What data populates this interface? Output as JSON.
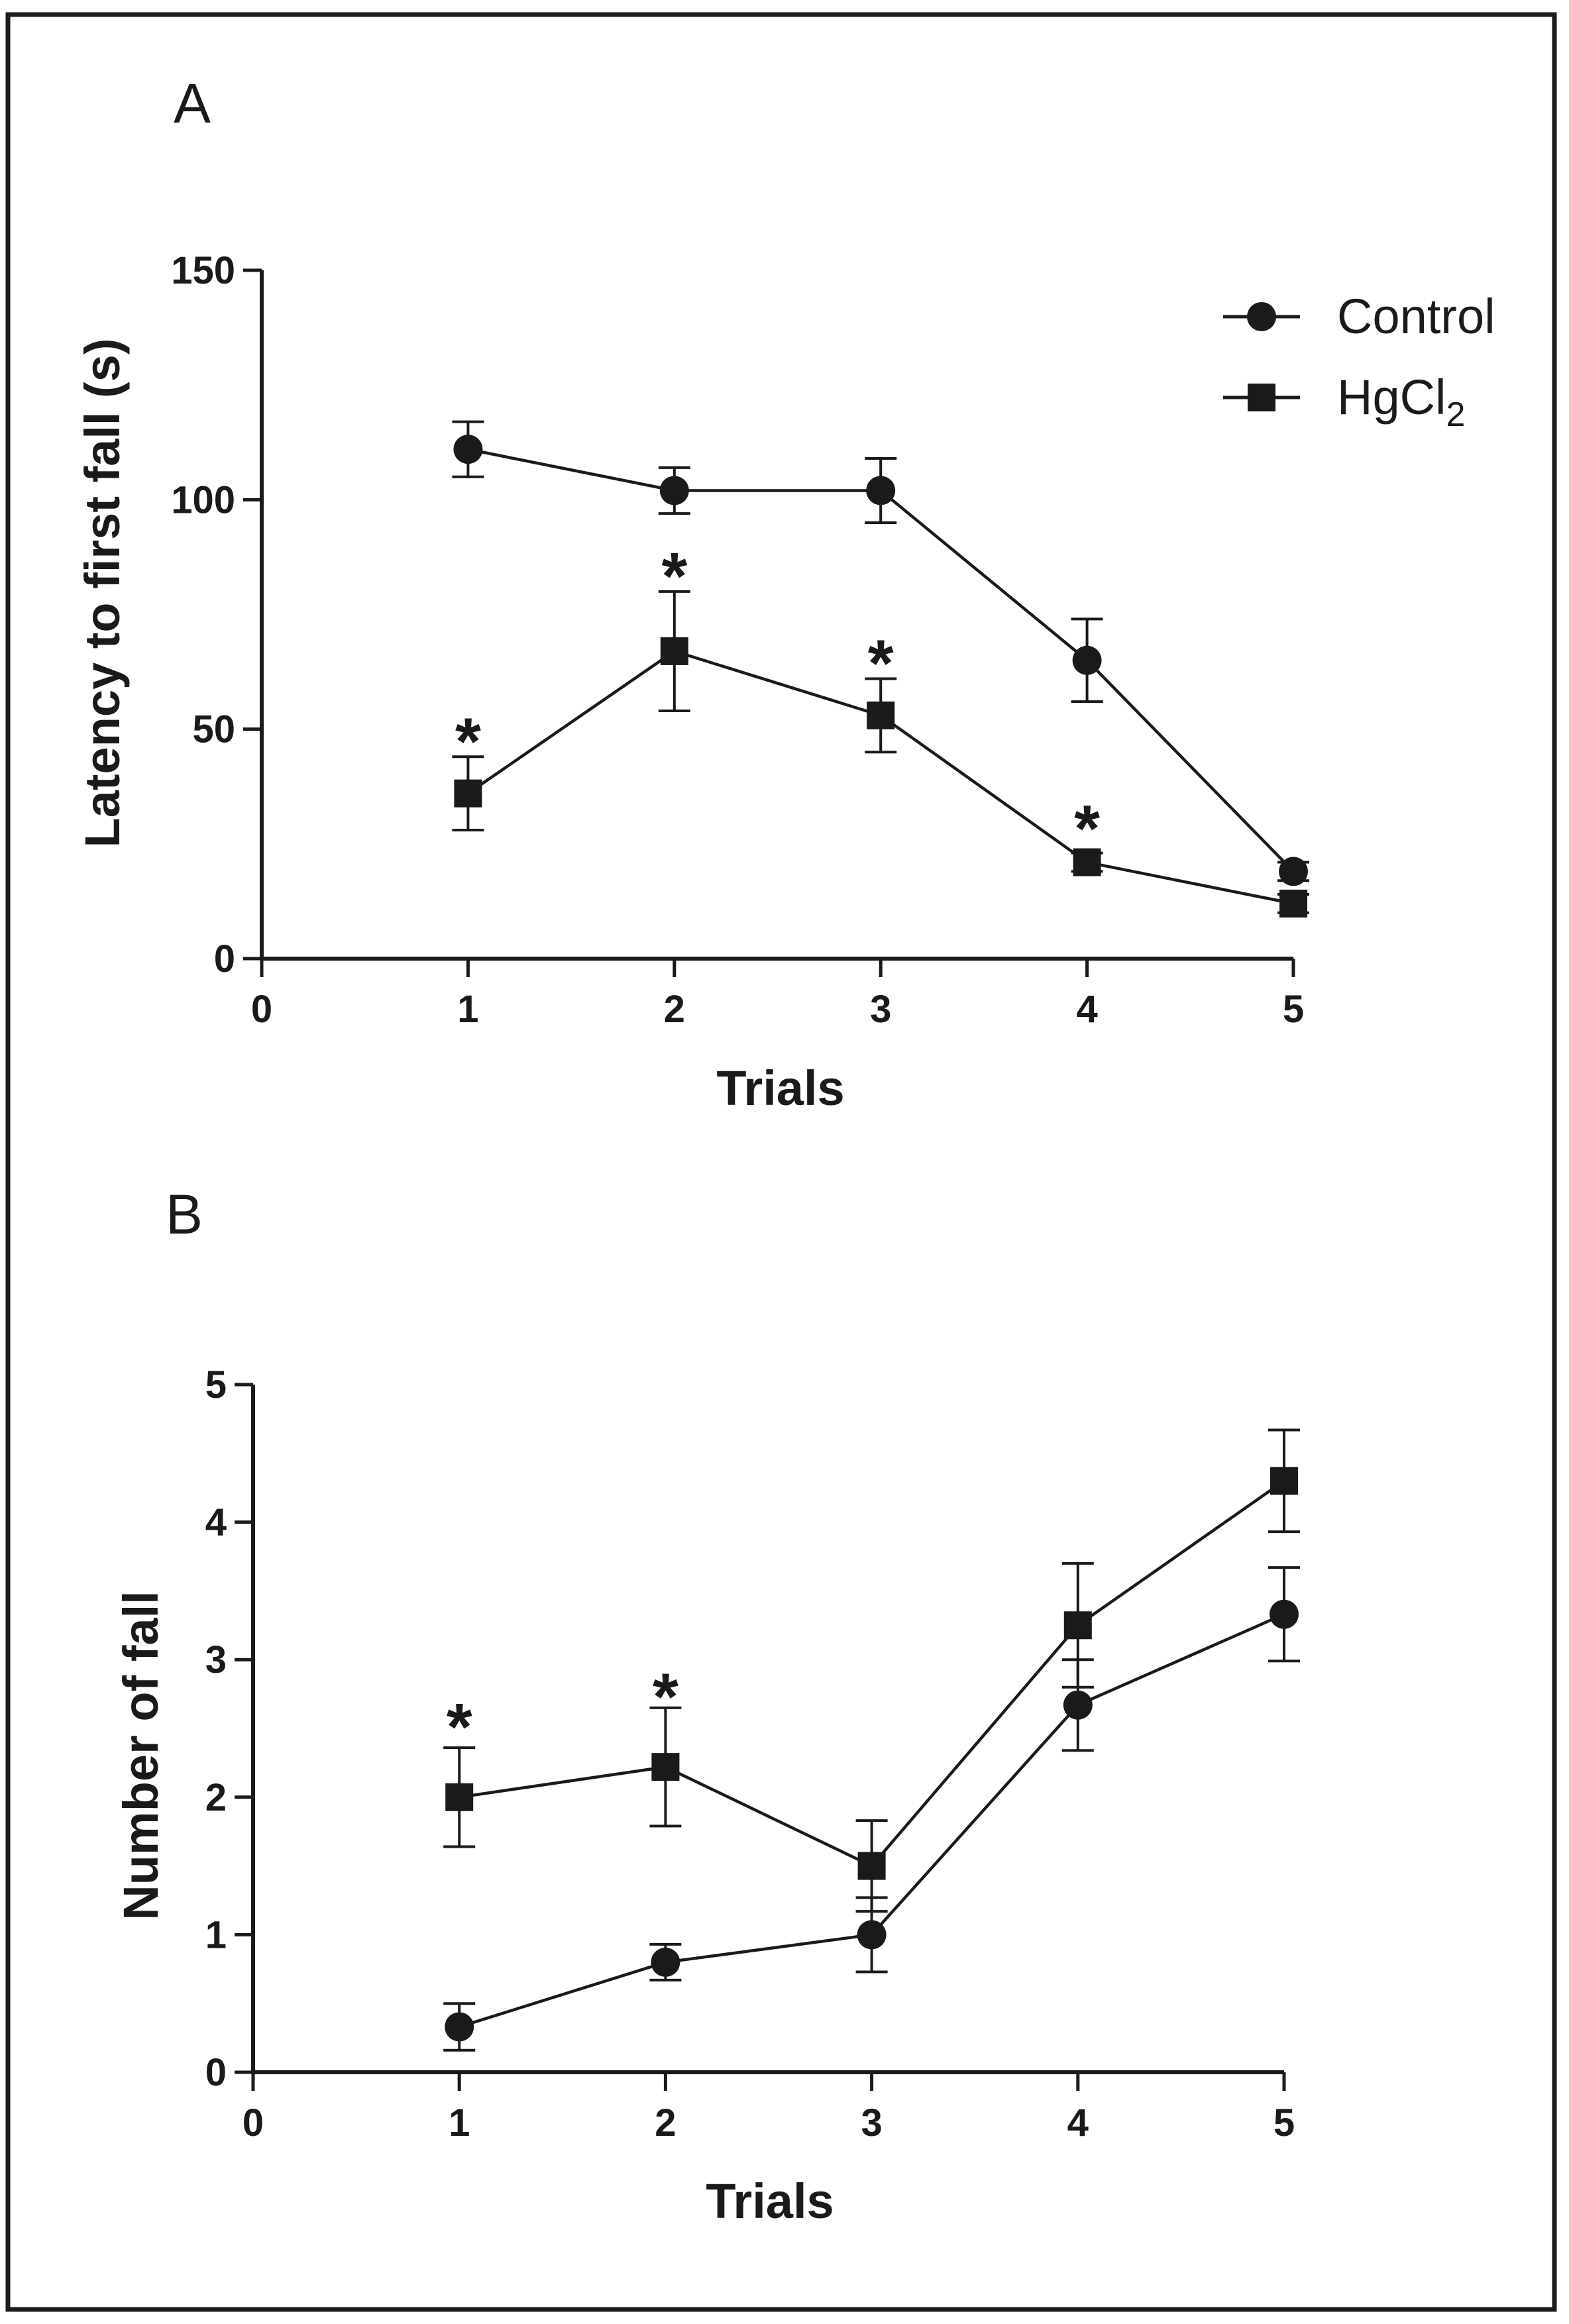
{
  "chart_data": [
    {
      "panel_label": "A",
      "type": "line",
      "xlabel": "Trials",
      "ylabel": "Latency to first fall (s)",
      "xlim": [
        0,
        5
      ],
      "ylim": [
        0,
        150
      ],
      "x_ticks": [
        "0",
        "1",
        "2",
        "3",
        "4",
        "5"
      ],
      "y_ticks": [
        "0",
        "50",
        "100",
        "150"
      ],
      "legend": {
        "position": "top-right",
        "entries": [
          {
            "label": "Control",
            "marker": "circle"
          },
          {
            "label": "HgCl",
            "subscript": "2",
            "marker": "square"
          }
        ]
      },
      "series": [
        {
          "name": "Control",
          "marker": "circle",
          "x": [
            1,
            2,
            3,
            4,
            5
          ],
          "values": [
            111,
            102,
            102,
            65,
            19
          ],
          "errors": [
            6,
            5,
            7,
            9,
            2
          ]
        },
        {
          "name": "HgCl2",
          "marker": "square",
          "x": [
            1,
            2,
            3,
            4,
            5
          ],
          "values": [
            36,
            67,
            53,
            21,
            12
          ],
          "errors": [
            8,
            13,
            8,
            2,
            2
          ]
        }
      ],
      "significance": [
        {
          "x": 1,
          "y": 47,
          "label": "*"
        },
        {
          "x": 2,
          "y": 83,
          "label": "*"
        },
        {
          "x": 3,
          "y": 64,
          "label": "*"
        },
        {
          "x": 4,
          "y": 28,
          "label": "*"
        }
      ]
    },
    {
      "panel_label": "B",
      "type": "line",
      "xlabel": "Trials",
      "ylabel": "Number of fall",
      "xlim": [
        0,
        5
      ],
      "ylim": [
        0,
        5
      ],
      "x_ticks": [
        "0",
        "1",
        "2",
        "3",
        "4",
        "5"
      ],
      "y_ticks": [
        "0",
        "1",
        "2",
        "3",
        "4",
        "5"
      ],
      "series": [
        {
          "name": "Control",
          "marker": "circle",
          "x": [
            1,
            2,
            3,
            4,
            5
          ],
          "values": [
            0.33,
            0.8,
            1.0,
            2.67,
            3.33
          ],
          "errors": [
            0.17,
            0.13,
            0.27,
            0.33,
            0.34
          ]
        },
        {
          "name": "HgCl2",
          "marker": "square",
          "x": [
            1,
            2,
            3,
            4,
            5
          ],
          "values": [
            2.0,
            2.22,
            1.5,
            3.25,
            4.3
          ],
          "errors": [
            0.36,
            0.43,
            0.33,
            0.45,
            0.37
          ]
        }
      ],
      "significance": [
        {
          "x": 1,
          "y": 2.5,
          "label": "*"
        },
        {
          "x": 2,
          "y": 2.72,
          "label": "*"
        }
      ]
    }
  ]
}
